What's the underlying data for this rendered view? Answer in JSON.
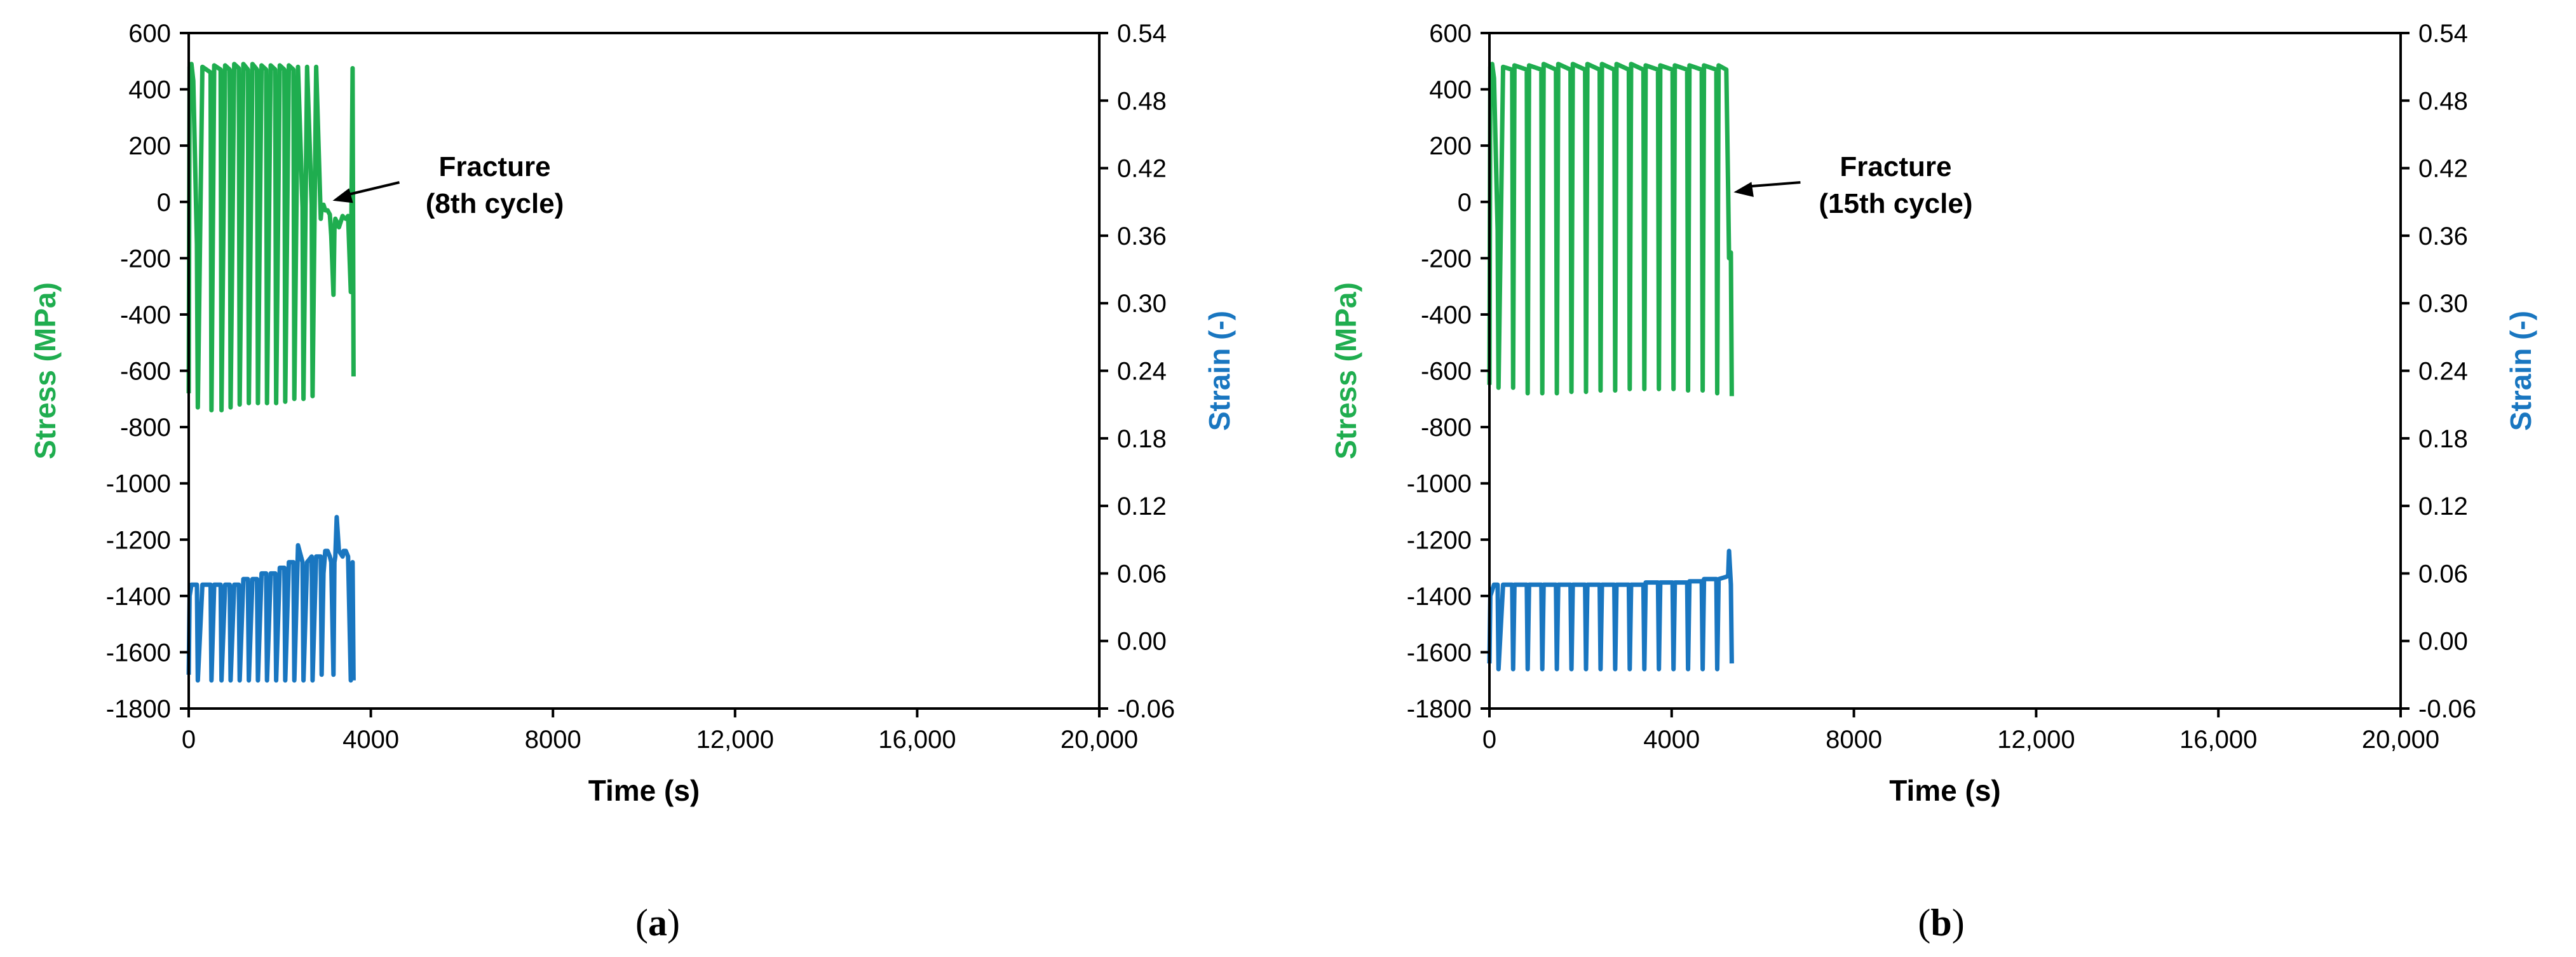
{
  "colors": {
    "stress": "#1FAD4F",
    "strain": "#1976C0",
    "axis": "#000000"
  },
  "chart_data": [
    {
      "type": "line",
      "panel_label_open": "(",
      "panel_label_letter": "a",
      "panel_label_close": ")",
      "xlabel": "Time (s)",
      "ylabel_left": "Stress (MPa)",
      "ylabel_right": "Strain (-)",
      "xlim": [
        0,
        20000
      ],
      "ylim_left": [
        -1800,
        600
      ],
      "ylim_right": [
        -0.06,
        0.54
      ],
      "xticks": [
        "0",
        "4000",
        "8000",
        "12,000",
        "16,000",
        "20,000"
      ],
      "yticks_left": [
        "600",
        "400",
        "200",
        "0",
        "-200",
        "-400",
        "-600",
        "-800",
        "-1000",
        "-1200",
        "-1400",
        "-1600",
        "-1800"
      ],
      "yticks_right": [
        "0.54",
        "0.48",
        "0.42",
        "0.36",
        "0.30",
        "0.24",
        "0.18",
        "0.12",
        "0.06",
        "0.00",
        "-0.06"
      ],
      "annotation": {
        "line1": "Fracture",
        "line2": "(8th cycle)",
        "target_x": 3050,
        "target_y": 0
      },
      "grid": false,
      "series": [
        {
          "axis": "left",
          "x": [
            0,
            20,
            60,
            100,
            180,
            200,
            300,
            480,
            500,
            560,
            700,
            720,
            800,
            900,
            920,
            1000,
            1100,
            1120,
            1200,
            1300,
            1320,
            1400,
            1500,
            1520,
            1600,
            1700,
            1720,
            1800,
            1900,
            1920,
            2000,
            2100,
            2120,
            2200,
            2300,
            2320,
            2400,
            2500,
            2520,
            2600,
            2700,
            2720,
            2800,
            2900,
            2920,
            2960,
            3000,
            3050,
            3100,
            3130,
            3180,
            3200,
            3220,
            3250,
            3300,
            3380,
            3400,
            3450,
            3500,
            3560,
            3600,
            3620
          ],
          "y": [
            -680,
            480,
            490,
            430,
            -150,
            -730,
            480,
            460,
            -740,
            485,
            470,
            -740,
            485,
            470,
            -730,
            490,
            475,
            -720,
            490,
            470,
            -715,
            490,
            470,
            -715,
            485,
            470,
            -715,
            485,
            470,
            -715,
            485,
            470,
            -710,
            485,
            470,
            -700,
            480,
            -20,
            -700,
            480,
            -10,
            -690,
            480,
            -60,
            -20,
            -10,
            -30,
            -30,
            -45,
            -120,
            -330,
            -100,
            -60,
            -70,
            -90,
            -50,
            -55,
            -60,
            -50,
            -320,
            475,
            -620
          ]
        },
        {
          "axis": "right",
          "x": [
            0,
            20,
            60,
            100,
            180,
            200,
            300,
            480,
            500,
            560,
            700,
            720,
            800,
            900,
            920,
            1000,
            1100,
            1120,
            1200,
            1300,
            1320,
            1400,
            1500,
            1520,
            1600,
            1700,
            1720,
            1800,
            1900,
            1920,
            2000,
            2100,
            2120,
            2200,
            2300,
            2320,
            2400,
            2500,
            2520,
            2600,
            2700,
            2720,
            2800,
            2900,
            2920,
            2960,
            3000,
            3050,
            3100,
            3130,
            3180,
            3200,
            3220,
            3250,
            3300,
            3380,
            3400,
            3450,
            3500,
            3560,
            3600,
            3620
          ],
          "y": [
            -0.03,
            0.04,
            0.05,
            0.05,
            0.05,
            -0.035,
            0.05,
            0.05,
            -0.035,
            0.05,
            0.05,
            -0.035,
            0.05,
            0.05,
            -0.035,
            0.05,
            0.05,
            -0.035,
            0.055,
            0.055,
            -0.035,
            0.055,
            0.055,
            -0.035,
            0.06,
            0.06,
            -0.035,
            0.06,
            0.06,
            -0.035,
            0.065,
            0.065,
            -0.035,
            0.07,
            0.07,
            -0.035,
            0.085,
            0.07,
            -0.035,
            0.07,
            0.075,
            -0.035,
            0.075,
            0.075,
            -0.03,
            0.06,
            0.08,
            0.08,
            0.075,
            0.07,
            -0.03,
            0.07,
            0.075,
            0.11,
            0.08,
            0.075,
            0.08,
            0.08,
            0.075,
            -0.035,
            0.07,
            -0.035
          ]
        }
      ]
    },
    {
      "type": "line",
      "panel_label_open": "(",
      "panel_label_letter": "b",
      "panel_label_close": ")",
      "xlabel": "Time (s)",
      "ylabel_left": "Stress (MPa)",
      "ylabel_right": "Strain (-)",
      "xlim": [
        0,
        20000
      ],
      "ylim_left": [
        -1800,
        600
      ],
      "ylim_right": [
        -0.06,
        0.54
      ],
      "xticks": [
        "0",
        "4000",
        "8000",
        "12,000",
        "16,000",
        "20,000"
      ],
      "yticks_left": [
        "600",
        "400",
        "200",
        "0",
        "-200",
        "-400",
        "-600",
        "-800",
        "-1000",
        "-1200",
        "-1400",
        "-1600",
        "-1800"
      ],
      "yticks_right": [
        "0.54",
        "0.48",
        "0.42",
        "0.36",
        "0.30",
        "0.24",
        "0.18",
        "0.12",
        "0.06",
        "0.00",
        "-0.06"
      ],
      "annotation": {
        "line1": "Fracture",
        "line2": "(15th cycle)",
        "target_x": 5250,
        "target_y": 30
      },
      "grid": false,
      "series": [
        {
          "axis": "left",
          "x": [
            0,
            20,
            60,
            100,
            180,
            200,
            300,
            500,
            520,
            550,
            820,
            840,
            870,
            1140,
            1160,
            1190,
            1460,
            1480,
            1510,
            1780,
            1800,
            1830,
            2100,
            2120,
            2150,
            2420,
            2440,
            2470,
            2740,
            2760,
            2790,
            3060,
            3080,
            3110,
            3380,
            3400,
            3430,
            3700,
            3720,
            3750,
            4020,
            4040,
            4070,
            4340,
            4360,
            4390,
            4660,
            4680,
            4710,
            4980,
            5000,
            5030,
            5200,
            5240,
            5260,
            5300,
            5320
          ],
          "y": [
            -650,
            480,
            490,
            440,
            -100,
            -660,
            480,
            470,
            -660,
            485,
            470,
            -680,
            485,
            470,
            -680,
            490,
            470,
            -680,
            490,
            470,
            -675,
            490,
            470,
            -675,
            490,
            470,
            -670,
            490,
            470,
            -670,
            490,
            470,
            -665,
            490,
            470,
            -665,
            485,
            470,
            -665,
            485,
            470,
            -665,
            485,
            470,
            -670,
            485,
            470,
            -670,
            485,
            470,
            -680,
            485,
            470,
            40,
            -200,
            -180,
            -690
          ]
        },
        {
          "axis": "right",
          "x": [
            0,
            20,
            60,
            100,
            180,
            200,
            300,
            500,
            520,
            550,
            820,
            840,
            870,
            1140,
            1160,
            1190,
            1460,
            1480,
            1510,
            1780,
            1800,
            1830,
            2100,
            2120,
            2150,
            2420,
            2440,
            2470,
            2740,
            2760,
            2790,
            3060,
            3080,
            3110,
            3380,
            3400,
            3430,
            3700,
            3720,
            3750,
            4020,
            4040,
            4070,
            4340,
            4360,
            4390,
            4660,
            4680,
            4710,
            4980,
            5000,
            5030,
            5200,
            5240,
            5260,
            5300,
            5320
          ],
          "y": [
            -0.02,
            0.04,
            0.045,
            0.05,
            0.05,
            -0.025,
            0.05,
            0.05,
            -0.025,
            0.05,
            0.05,
            -0.025,
            0.05,
            0.05,
            -0.025,
            0.05,
            0.05,
            -0.025,
            0.05,
            0.05,
            -0.025,
            0.05,
            0.05,
            -0.025,
            0.05,
            0.05,
            -0.025,
            0.05,
            0.05,
            -0.025,
            0.05,
            0.05,
            -0.025,
            0.05,
            0.05,
            -0.025,
            0.052,
            0.052,
            -0.025,
            0.052,
            0.052,
            -0.025,
            0.052,
            0.052,
            -0.025,
            0.053,
            0.053,
            -0.025,
            0.055,
            0.055,
            -0.025,
            0.055,
            0.057,
            0.058,
            0.08,
            0.05,
            -0.02
          ]
        }
      ]
    }
  ]
}
